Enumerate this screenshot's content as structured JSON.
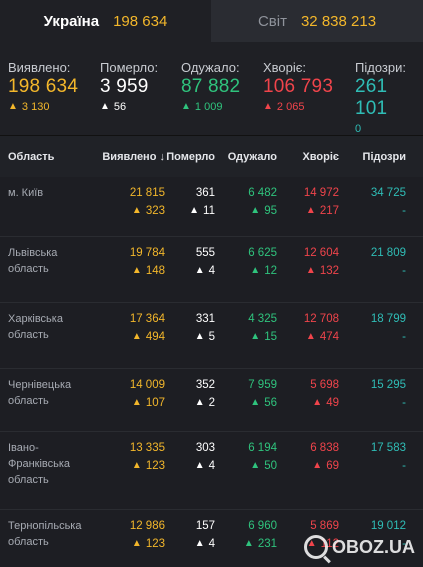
{
  "tabs": [
    {
      "name": "Україна",
      "count": "198 634"
    },
    {
      "name": "Світ",
      "count": "32 838 213"
    }
  ],
  "summary": {
    "detected": {
      "label": "Виявлено:",
      "value": "198 634",
      "delta": "3 130"
    },
    "deaths": {
      "label": "Померло:",
      "value": "3 959",
      "delta": "56"
    },
    "recovered": {
      "label": "Одужало:",
      "value": "87 882",
      "delta": "1 009"
    },
    "sick": {
      "label": "Хворіє:",
      "value": "106 793",
      "delta": "2 065"
    },
    "suspected": {
      "label": "Підозри:",
      "value": "261 101",
      "delta": "0"
    }
  },
  "table": {
    "headers": {
      "region": "Область",
      "detected": "Виявлено",
      "deaths": "Померло",
      "recovered": "Одужало",
      "sick": "Хворіє",
      "suspected": "Підозри"
    },
    "sort_arrow": "↓",
    "rows": [
      {
        "region": "м. Київ",
        "detected": "21 815",
        "detected_d": "323",
        "deaths": "361",
        "deaths_d": "11",
        "recovered": "6 482",
        "recovered_d": "95",
        "sick": "14 972",
        "sick_d": "217",
        "suspected": "34 725",
        "suspected_d": "-"
      },
      {
        "region": "Львівська область",
        "detected": "19 784",
        "detected_d": "148",
        "deaths": "555",
        "deaths_d": "4",
        "recovered": "6 625",
        "recovered_d": "12",
        "sick": "12 604",
        "sick_d": "132",
        "suspected": "21 809",
        "suspected_d": "-"
      },
      {
        "region": "Харківська область",
        "detected": "17 364",
        "detected_d": "494",
        "deaths": "331",
        "deaths_d": "5",
        "recovered": "4 325",
        "recovered_d": "15",
        "sick": "12 708",
        "sick_d": "474",
        "suspected": "18 799",
        "suspected_d": "-"
      },
      {
        "region": "Чернівецька область",
        "detected": "14 009",
        "detected_d": "107",
        "deaths": "352",
        "deaths_d": "2",
        "recovered": "7 959",
        "recovered_d": "56",
        "sick": "5 698",
        "sick_d": "49",
        "suspected": "15 295",
        "suspected_d": "-"
      },
      {
        "region": "Івано-Франківська область",
        "detected": "13 335",
        "detected_d": "123",
        "deaths": "303",
        "deaths_d": "4",
        "recovered": "6 194",
        "recovered_d": "50",
        "sick": "6 838",
        "sick_d": "69",
        "suspected": "17 583",
        "suspected_d": "-"
      },
      {
        "region": "Тернопільська область",
        "detected": "12 986",
        "detected_d": "123",
        "deaths": "157",
        "deaths_d": "4",
        "recovered": "6 960",
        "recovered_d": "231",
        "sick": "5 869",
        "sick_d": "112",
        "suspected": "19 012",
        "suspected_d": "-"
      }
    ]
  },
  "watermark": "OBOZ.UA",
  "colors": {
    "detected": "#f3b72b",
    "deaths": "#ffffff",
    "recovered": "#2fc37d",
    "sick": "#f0444b",
    "suspected": "#2fbdb6"
  }
}
